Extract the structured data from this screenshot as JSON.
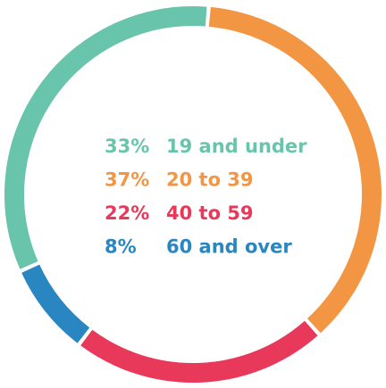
{
  "chart_data": {
    "type": "donut",
    "categories": [
      "19 and under",
      "20 to 39",
      "40 to 59",
      "60 and over"
    ],
    "values": [
      33,
      37,
      22,
      8
    ],
    "value_labels": [
      "33%",
      "37%",
      "22%",
      "8%"
    ],
    "colors": [
      "#68c5ac",
      "#f39644",
      "#e8395a",
      "#2a86c0"
    ]
  }
}
